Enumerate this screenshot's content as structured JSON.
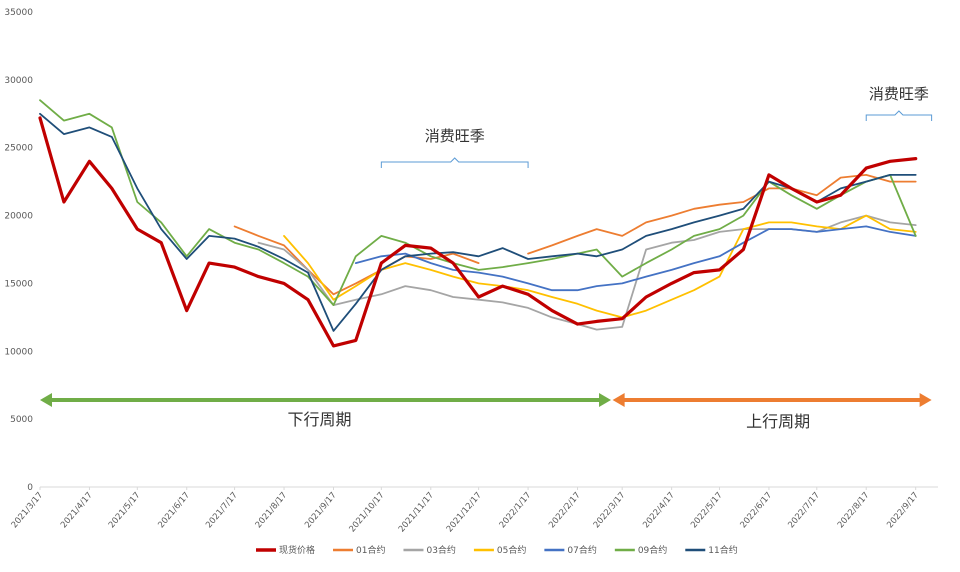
{
  "chart_data": {
    "type": "line",
    "title": "",
    "xlabel": "",
    "ylabel": "",
    "ylim": [
      0,
      35000
    ],
    "yticks": [
      0,
      5000,
      10000,
      15000,
      20000,
      25000,
      30000,
      35000
    ],
    "x_ticks": [
      "2021/3/17",
      "2021/4/17",
      "2021/5/17",
      "2021/6/17",
      "2021/7/17",
      "2021/8/17",
      "2021/9/17",
      "2021/10/17",
      "2021/11/17",
      "2021/12/17",
      "2022/1/17",
      "2022/2/17",
      "2022/3/17",
      "2022/4/17",
      "2022/5/17",
      "2022/6/17",
      "2022/7/17",
      "2022/8/17",
      "2022/9/17"
    ],
    "grid": false,
    "legend_position": "bottom",
    "x": [
      "2021/3/17",
      "2021/4/1",
      "2021/4/17",
      "2021/5/1",
      "2021/5/17",
      "2021/6/1",
      "2021/6/17",
      "2021/7/1",
      "2021/7/17",
      "2021/8/1",
      "2021/8/17",
      "2021/9/1",
      "2021/9/17",
      "2021/10/1",
      "2021/10/17",
      "2021/11/1",
      "2021/11/17",
      "2021/12/1",
      "2021/12/17",
      "2022/1/1",
      "2022/1/17",
      "2022/2/1",
      "2022/2/17",
      "2022/3/1",
      "2022/3/17",
      "2022/4/1",
      "2022/4/17",
      "2022/5/1",
      "2022/5/17",
      "2022/6/1",
      "2022/6/17",
      "2022/7/1",
      "2022/7/17",
      "2022/8/1",
      "2022/8/17",
      "2022/9/1",
      "2022/9/17",
      "2022/10/1"
    ],
    "series": [
      {
        "name": "现货价格",
        "color": "#c00000",
        "width": 3.2,
        "values": [
          27200,
          21000,
          24000,
          22000,
          19000,
          18000,
          13000,
          16500,
          16200,
          15500,
          15000,
          13800,
          10400,
          10800,
          16500,
          17800,
          17600,
          16500,
          14000,
          14800,
          14200,
          13000,
          12000,
          12200,
          12400,
          14000,
          15000,
          15800,
          16000,
          17500,
          23000,
          22000,
          21000,
          21500,
          23500,
          24000,
          24200,
          null
        ]
      },
      {
        "name": "01合约",
        "color": "#ed7d31",
        "width": 1.8,
        "values": [
          null,
          null,
          null,
          null,
          null,
          null,
          null,
          null,
          19200,
          18500,
          17800,
          16000,
          14200,
          15000,
          16000,
          17000,
          16800,
          17200,
          16500,
          null,
          17200,
          17800,
          18500,
          19000,
          18500,
          19500,
          20000,
          20500,
          20800,
          21000,
          22000,
          22000,
          21500,
          22800,
          23000,
          22500,
          22500,
          null
        ]
      },
      {
        "name": "03合约",
        "color": "#a5a5a5",
        "width": 1.8,
        "values": [
          null,
          null,
          null,
          null,
          null,
          null,
          null,
          null,
          null,
          18000,
          17500,
          16000,
          13400,
          13800,
          14200,
          14800,
          14500,
          14000,
          13800,
          13600,
          13200,
          12500,
          12000,
          11600,
          11800,
          17500,
          18000,
          18200,
          18800,
          19000,
          19000,
          19000,
          18800,
          19500,
          20000,
          19500,
          19300,
          null
        ]
      },
      {
        "name": "05合约",
        "color": "#ffc000",
        "width": 1.8,
        "values": [
          null,
          null,
          null,
          null,
          null,
          null,
          null,
          null,
          null,
          null,
          18500,
          16500,
          13800,
          14800,
          16000,
          16500,
          16000,
          15500,
          15000,
          14800,
          14500,
          14000,
          13500,
          13000,
          12500,
          13000,
          13800,
          14500,
          15500,
          19000,
          19500,
          19500,
          19200,
          19000,
          20000,
          19000,
          18800,
          null
        ]
      },
      {
        "name": "07合约",
        "color": "#4472c4",
        "width": 1.8,
        "values": [
          null,
          null,
          null,
          null,
          null,
          null,
          null,
          null,
          null,
          null,
          null,
          null,
          null,
          16500,
          17000,
          17200,
          16500,
          16000,
          15800,
          15500,
          15000,
          14500,
          14500,
          14800,
          15000,
          15500,
          16000,
          16500,
          17000,
          18000,
          19000,
          19000,
          18800,
          19000,
          19200,
          18800,
          18500,
          null
        ]
      },
      {
        "name": "09合约",
        "color": "#70ad47",
        "width": 1.8,
        "values": [
          28500,
          27000,
          27500,
          26500,
          21000,
          19500,
          17000,
          19000,
          18000,
          17500,
          16500,
          15500,
          13400,
          17000,
          18500,
          18000,
          17000,
          16500,
          16000,
          16200,
          16500,
          16800,
          17200,
          17500,
          15500,
          16500,
          17500,
          18500,
          19000,
          20000,
          22500,
          21500,
          20500,
          21500,
          22500,
          23000,
          18500,
          null
        ]
      },
      {
        "name": "11合约",
        "color": "#1f4e79",
        "width": 1.8,
        "values": [
          27500,
          26000,
          26500,
          25800,
          22000,
          19000,
          16800,
          18500,
          18300,
          17700,
          16800,
          15800,
          11500,
          13500,
          16000,
          17000,
          17200,
          17300,
          17000,
          17600,
          16800,
          17000,
          17200,
          17000,
          17500,
          18500,
          19000,
          19500,
          20000,
          20500,
          22500,
          22000,
          21000,
          22000,
          22500,
          23000,
          23000,
          null
        ]
      }
    ],
    "annotations": {
      "peak_label_1": "消费旺季",
      "peak_label_2": "消费旺季",
      "down_phase": "下行周期",
      "up_phase": "上行周期"
    }
  }
}
